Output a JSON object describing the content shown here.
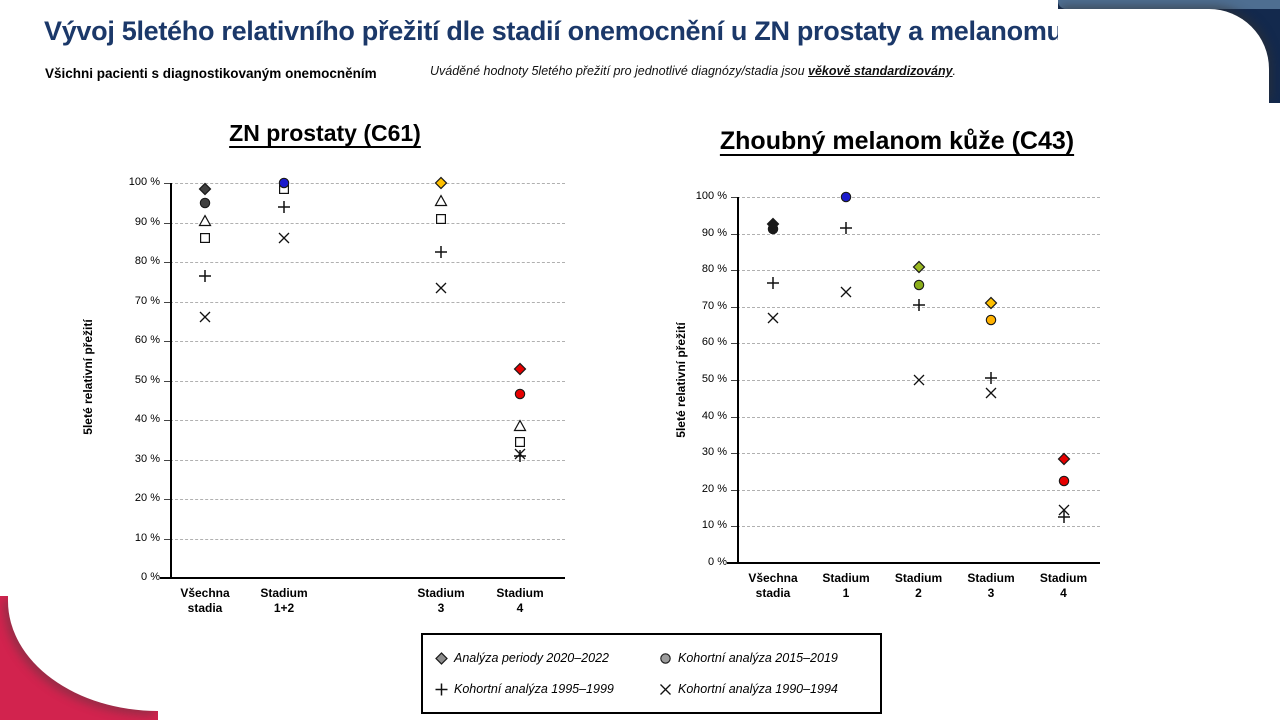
{
  "page": {
    "title": "Vývoj 5letého relativního přežití dle stadií onemocnění u ZN prostaty a melanomu",
    "subtitle": "Všichni pacienti s diagnostikovaným onemocněním",
    "note_prefix": "Uváděné hodnoty 5letého přežití pro jednotlivé diagnózy/stadia jsou ",
    "note_emphasis": "věkově standardizovány",
    "note_suffix": "."
  },
  "colors": {
    "title_navy": "#1b3869",
    "corner_navy": "#13294d",
    "corner_slate_band": "#4e6e91",
    "corner_crimson": "#d2234e",
    "marker_dark_gray": "#3f3f3f",
    "marker_black": "#1a1a1a",
    "marker_blue": "#1a1acd",
    "marker_olive": "#9ab821",
    "marker_gold": "#ffc000",
    "marker_red": "#e60000"
  },
  "legend": {
    "items": [
      {
        "marker": "diamond",
        "color": "#8c8c8c",
        "label": "Analýza periody 2020–2022"
      },
      {
        "marker": "circle",
        "color": "#9c9c9c",
        "label": "Kohortní analýza 2015–2019"
      },
      {
        "marker": "plus",
        "color": "#1a1a1a",
        "label": "Kohortní analýza 1995–1999"
      },
      {
        "marker": "x",
        "color": "#1a1a1a",
        "label": "Kohortní analýza 1990–1994"
      }
    ]
  },
  "chart_data": [
    {
      "type": "scatter",
      "title": "ZN prostaty (C61)",
      "ylabel": "5leté relativní přežití",
      "xlabel": "",
      "ylim": [
        0,
        100
      ],
      "grid": "horizontal-dashed",
      "yticks": [
        "0 %",
        "10 %",
        "20 %",
        "30 %",
        "40 %",
        "50 %",
        "60 %",
        "70 %",
        "80 %",
        "90 %",
        "100 %"
      ],
      "categories": [
        [
          "Všechna",
          "stadia"
        ],
        [
          "Stadium",
          "1+2"
        ],
        [],
        [
          "Stadium",
          "3"
        ],
        [
          "Stadium",
          "4"
        ]
      ],
      "points": [
        {
          "category": 0,
          "marker": "x",
          "value": 66
        },
        {
          "category": 0,
          "marker": "plus",
          "value": 76.5
        },
        {
          "category": 0,
          "marker": "square",
          "value": 86
        },
        {
          "category": 0,
          "marker": "triangle",
          "value": 90.5
        },
        {
          "category": 0,
          "marker": "circle",
          "value": 95,
          "color": "#3f3f3f"
        },
        {
          "category": 0,
          "marker": "diamond",
          "value": 98.5,
          "color": "#3f3f3f"
        },
        {
          "category": 1,
          "marker": "x",
          "value": 86
        },
        {
          "category": 1,
          "marker": "plus",
          "value": 94
        },
        {
          "category": 1,
          "marker": "square",
          "value": 98.5
        },
        {
          "category": 1,
          "marker": "circle",
          "value": 100,
          "color": "#1a1acd"
        },
        {
          "category": 3,
          "marker": "x",
          "value": 73.5
        },
        {
          "category": 3,
          "marker": "plus",
          "value": 82.5
        },
        {
          "category": 3,
          "marker": "square",
          "value": 91
        },
        {
          "category": 3,
          "marker": "triangle",
          "value": 95.5
        },
        {
          "category": 3,
          "marker": "diamond",
          "value": 100,
          "color": "#ffc000"
        },
        {
          "category": 4,
          "marker": "x",
          "value": 31.5
        },
        {
          "category": 4,
          "marker": "plus",
          "value": 31
        },
        {
          "category": 4,
          "marker": "square",
          "value": 34.5
        },
        {
          "category": 4,
          "marker": "triangle",
          "value": 38.5
        },
        {
          "category": 4,
          "marker": "circle",
          "value": 46.5,
          "color": "#e60000"
        },
        {
          "category": 4,
          "marker": "diamond",
          "value": 53,
          "color": "#e60000"
        }
      ]
    },
    {
      "type": "scatter",
      "title": "Zhoubný melanom kůže (C43)",
      "ylabel": "5leté relativní přežití",
      "xlabel": "",
      "ylim": [
        0,
        100
      ],
      "grid": "horizontal-dashed",
      "yticks": [
        "0 %",
        "10 %",
        "20 %",
        "30 %",
        "40 %",
        "50 %",
        "60 %",
        "70 %",
        "80 %",
        "90 %",
        "100 %"
      ],
      "categories": [
        [
          "Všechna",
          "stadia"
        ],
        [
          "Stadium",
          "1"
        ],
        [
          "Stadium",
          "2"
        ],
        [
          "Stadium",
          "3"
        ],
        [
          "Stadium",
          "4"
        ]
      ],
      "points": [
        {
          "category": 0,
          "marker": "x",
          "value": 67
        },
        {
          "category": 0,
          "marker": "plus",
          "value": 76.5
        },
        {
          "category": 0,
          "marker": "circle",
          "value": 91.3,
          "color": "#1a1a1a"
        },
        {
          "category": 0,
          "marker": "diamond",
          "value": 92.5,
          "color": "#1a1a1a"
        },
        {
          "category": 1,
          "marker": "x",
          "value": 74
        },
        {
          "category": 1,
          "marker": "plus",
          "value": 91.5
        },
        {
          "category": 1,
          "marker": "circle",
          "value": 100,
          "color": "#1a1acd"
        },
        {
          "category": 2,
          "marker": "x",
          "value": 50
        },
        {
          "category": 2,
          "marker": "plus",
          "value": 70.5
        },
        {
          "category": 2,
          "marker": "circle",
          "value": 76,
          "color": "#8bad1b"
        },
        {
          "category": 2,
          "marker": "diamond",
          "value": 81,
          "color": "#9ab821"
        },
        {
          "category": 3,
          "marker": "x",
          "value": 46.5
        },
        {
          "category": 3,
          "marker": "plus",
          "value": 50.5
        },
        {
          "category": 3,
          "marker": "circle",
          "value": 66.3,
          "color": "#ffb100"
        },
        {
          "category": 3,
          "marker": "diamond",
          "value": 71,
          "color": "#ffc000"
        },
        {
          "category": 4,
          "marker": "plus",
          "value": 12.5
        },
        {
          "category": 4,
          "marker": "x",
          "value": 14.5
        },
        {
          "category": 4,
          "marker": "circle",
          "value": 22.5,
          "color": "#e60000"
        },
        {
          "category": 4,
          "marker": "diamond",
          "value": 28.5,
          "color": "#e60000"
        }
      ]
    }
  ]
}
